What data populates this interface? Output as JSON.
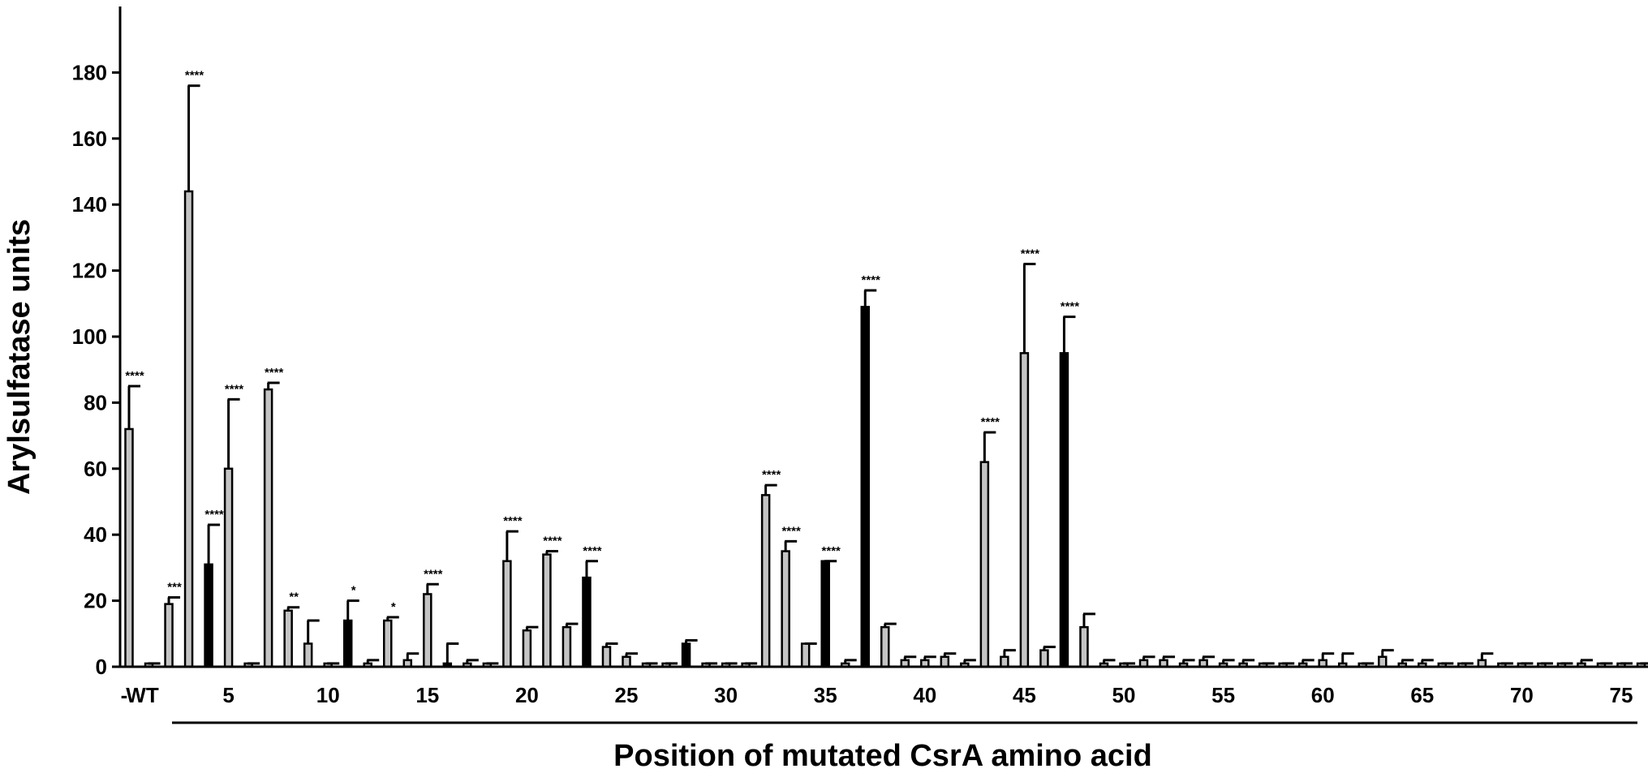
{
  "chart_data": {
    "type": "bar",
    "ylabel": "Arylsulfatase units",
    "xlabel": "Position of mutated CsrA amino acid",
    "ylim": [
      0,
      200
    ],
    "yticks": [
      0,
      20,
      40,
      60,
      80,
      100,
      120,
      140,
      160,
      180
    ],
    "x_tick_labels": [
      {
        "pos": 0,
        "label": "-"
      },
      {
        "pos": 1,
        "label": "WT"
      },
      {
        "pos": 5,
        "label": "5"
      },
      {
        "pos": 10,
        "label": "10"
      },
      {
        "pos": 15,
        "label": "15"
      },
      {
        "pos": 20,
        "label": "20"
      },
      {
        "pos": 25,
        "label": "25"
      },
      {
        "pos": 30,
        "label": "30"
      },
      {
        "pos": 35,
        "label": "35"
      },
      {
        "pos": 40,
        "label": "40"
      },
      {
        "pos": 45,
        "label": "45"
      },
      {
        "pos": 50,
        "label": "50"
      },
      {
        "pos": 55,
        "label": "55"
      },
      {
        "pos": 60,
        "label": "60"
      },
      {
        "pos": 65,
        "label": "65"
      },
      {
        "pos": 70,
        "label": "70"
      },
      {
        "pos": 75,
        "label": "75"
      }
    ],
    "bars": [
      {
        "pos": 0,
        "value": 72,
        "err": 13,
        "fill": "gray",
        "sig": "****"
      },
      {
        "pos": 1,
        "value": 1,
        "err": 0,
        "fill": "gray",
        "sig": ""
      },
      {
        "pos": 2,
        "value": 19,
        "err": 2,
        "fill": "gray",
        "sig": "***"
      },
      {
        "pos": 3,
        "value": 144,
        "err": 32,
        "fill": "gray",
        "sig": "****"
      },
      {
        "pos": 4,
        "value": 31,
        "err": 12,
        "fill": "black",
        "sig": "****"
      },
      {
        "pos": 5,
        "value": 60,
        "err": 21,
        "fill": "gray",
        "sig": "****"
      },
      {
        "pos": 6,
        "value": 1,
        "err": 0,
        "fill": "gray",
        "sig": ""
      },
      {
        "pos": 7,
        "value": 84,
        "err": 2,
        "fill": "gray",
        "sig": "****"
      },
      {
        "pos": 8,
        "value": 17,
        "err": 1,
        "fill": "gray",
        "sig": "**"
      },
      {
        "pos": 9,
        "value": 7,
        "err": 7,
        "fill": "gray",
        "sig": ""
      },
      {
        "pos": 10,
        "value": 1,
        "err": 0,
        "fill": "gray",
        "sig": ""
      },
      {
        "pos": 11,
        "value": 14,
        "err": 6,
        "fill": "black",
        "sig": "*"
      },
      {
        "pos": 12,
        "value": 1,
        "err": 1,
        "fill": "gray",
        "sig": ""
      },
      {
        "pos": 13,
        "value": 14,
        "err": 1,
        "fill": "gray",
        "sig": "*"
      },
      {
        "pos": 14,
        "value": 2,
        "err": 2,
        "fill": "gray",
        "sig": ""
      },
      {
        "pos": 15,
        "value": 22,
        "err": 3,
        "fill": "gray",
        "sig": "****"
      },
      {
        "pos": 16,
        "value": 1,
        "err": 6,
        "fill": "black",
        "sig": ""
      },
      {
        "pos": 17,
        "value": 1,
        "err": 1,
        "fill": "gray",
        "sig": ""
      },
      {
        "pos": 18,
        "value": 1,
        "err": 0,
        "fill": "gray",
        "sig": ""
      },
      {
        "pos": 19,
        "value": 32,
        "err": 9,
        "fill": "gray",
        "sig": "****"
      },
      {
        "pos": 20,
        "value": 11,
        "err": 1,
        "fill": "gray",
        "sig": ""
      },
      {
        "pos": 21,
        "value": 34,
        "err": 1,
        "fill": "gray",
        "sig": "****"
      },
      {
        "pos": 22,
        "value": 12,
        "err": 1,
        "fill": "gray",
        "sig": ""
      },
      {
        "pos": 23,
        "value": 27,
        "err": 5,
        "fill": "black",
        "sig": "****"
      },
      {
        "pos": 24,
        "value": 6,
        "err": 1,
        "fill": "gray",
        "sig": ""
      },
      {
        "pos": 25,
        "value": 3,
        "err": 1,
        "fill": "gray",
        "sig": ""
      },
      {
        "pos": 26,
        "value": 1,
        "err": 0,
        "fill": "gray",
        "sig": ""
      },
      {
        "pos": 27,
        "value": 1,
        "err": 0,
        "fill": "gray",
        "sig": ""
      },
      {
        "pos": 28,
        "value": 7,
        "err": 1,
        "fill": "black",
        "sig": ""
      },
      {
        "pos": 29,
        "value": 1,
        "err": 0,
        "fill": "gray",
        "sig": ""
      },
      {
        "pos": 30,
        "value": 1,
        "err": 0,
        "fill": "gray",
        "sig": ""
      },
      {
        "pos": 31,
        "value": 1,
        "err": 0,
        "fill": "gray",
        "sig": ""
      },
      {
        "pos": 32,
        "value": 52,
        "err": 3,
        "fill": "gray",
        "sig": "****"
      },
      {
        "pos": 33,
        "value": 35,
        "err": 3,
        "fill": "gray",
        "sig": "****"
      },
      {
        "pos": 34,
        "value": 7,
        "err": 0,
        "fill": "gray",
        "sig": ""
      },
      {
        "pos": 35,
        "value": 32,
        "err": 0,
        "fill": "black",
        "sig": "****"
      },
      {
        "pos": 36,
        "value": 1,
        "err": 1,
        "fill": "gray",
        "sig": ""
      },
      {
        "pos": 37,
        "value": 109,
        "err": 5,
        "fill": "black",
        "sig": "****"
      },
      {
        "pos": 38,
        "value": 12,
        "err": 1,
        "fill": "gray",
        "sig": ""
      },
      {
        "pos": 39,
        "value": 2,
        "err": 1,
        "fill": "gray",
        "sig": ""
      },
      {
        "pos": 40,
        "value": 2,
        "err": 1,
        "fill": "gray",
        "sig": ""
      },
      {
        "pos": 41,
        "value": 3,
        "err": 1,
        "fill": "gray",
        "sig": ""
      },
      {
        "pos": 42,
        "value": 1,
        "err": 1,
        "fill": "gray",
        "sig": ""
      },
      {
        "pos": 43,
        "value": 62,
        "err": 9,
        "fill": "gray",
        "sig": "****"
      },
      {
        "pos": 44,
        "value": 3,
        "err": 2,
        "fill": "gray",
        "sig": ""
      },
      {
        "pos": 45,
        "value": 95,
        "err": 27,
        "fill": "gray",
        "sig": "****"
      },
      {
        "pos": 46,
        "value": 5,
        "err": 1,
        "fill": "gray",
        "sig": ""
      },
      {
        "pos": 47,
        "value": 95,
        "err": 11,
        "fill": "black",
        "sig": "****"
      },
      {
        "pos": 48,
        "value": 12,
        "err": 4,
        "fill": "gray",
        "sig": ""
      },
      {
        "pos": 49,
        "value": 1,
        "err": 1,
        "fill": "gray",
        "sig": ""
      },
      {
        "pos": 50,
        "value": 1,
        "err": 0,
        "fill": "gray",
        "sig": ""
      },
      {
        "pos": 51,
        "value": 2,
        "err": 1,
        "fill": "gray",
        "sig": ""
      },
      {
        "pos": 52,
        "value": 2,
        "err": 1,
        "fill": "gray",
        "sig": ""
      },
      {
        "pos": 53,
        "value": 1,
        "err": 1,
        "fill": "gray",
        "sig": ""
      },
      {
        "pos": 54,
        "value": 2,
        "err": 1,
        "fill": "gray",
        "sig": ""
      },
      {
        "pos": 55,
        "value": 1,
        "err": 1,
        "fill": "gray",
        "sig": ""
      },
      {
        "pos": 56,
        "value": 1,
        "err": 1,
        "fill": "gray",
        "sig": ""
      },
      {
        "pos": 57,
        "value": 1,
        "err": 0,
        "fill": "gray",
        "sig": ""
      },
      {
        "pos": 58,
        "value": 1,
        "err": 0,
        "fill": "gray",
        "sig": ""
      },
      {
        "pos": 59,
        "value": 1,
        "err": 1,
        "fill": "gray",
        "sig": ""
      },
      {
        "pos": 60,
        "value": 2,
        "err": 2,
        "fill": "gray",
        "sig": ""
      },
      {
        "pos": 61,
        "value": 1,
        "err": 3,
        "fill": "gray",
        "sig": ""
      },
      {
        "pos": 62,
        "value": 1,
        "err": 0,
        "fill": "gray",
        "sig": ""
      },
      {
        "pos": 63,
        "value": 3,
        "err": 2,
        "fill": "gray",
        "sig": ""
      },
      {
        "pos": 64,
        "value": 1,
        "err": 1,
        "fill": "gray",
        "sig": ""
      },
      {
        "pos": 65,
        "value": 1,
        "err": 1,
        "fill": "gray",
        "sig": ""
      },
      {
        "pos": 66,
        "value": 1,
        "err": 0,
        "fill": "gray",
        "sig": ""
      },
      {
        "pos": 67,
        "value": 1,
        "err": 0,
        "fill": "gray",
        "sig": ""
      },
      {
        "pos": 68,
        "value": 2,
        "err": 2,
        "fill": "gray",
        "sig": ""
      },
      {
        "pos": 69,
        "value": 1,
        "err": 0,
        "fill": "gray",
        "sig": ""
      },
      {
        "pos": 70,
        "value": 1,
        "err": 0,
        "fill": "gray",
        "sig": ""
      },
      {
        "pos": 71,
        "value": 1,
        "err": 0,
        "fill": "gray",
        "sig": ""
      },
      {
        "pos": 72,
        "value": 1,
        "err": 0,
        "fill": "gray",
        "sig": ""
      },
      {
        "pos": 73,
        "value": 1,
        "err": 1,
        "fill": "gray",
        "sig": ""
      },
      {
        "pos": 74,
        "value": 1,
        "err": 0,
        "fill": "gray",
        "sig": ""
      },
      {
        "pos": 75,
        "value": 1,
        "err": 0,
        "fill": "gray",
        "sig": ""
      },
      {
        "pos": 76,
        "value": 1,
        "err": 0,
        "fill": "gray",
        "sig": ""
      }
    ],
    "grid": false,
    "colors": {
      "gray": "#c4c4c4",
      "black": "#000000"
    }
  }
}
